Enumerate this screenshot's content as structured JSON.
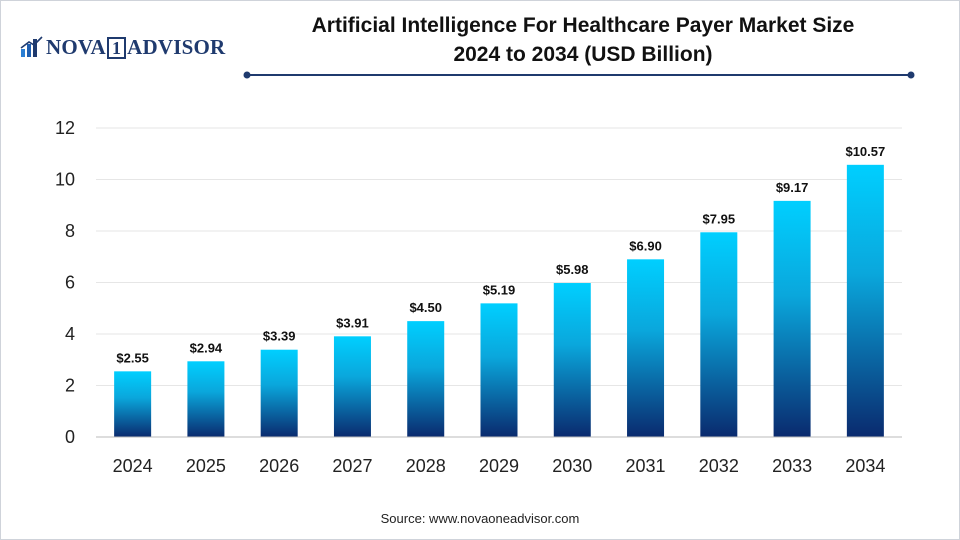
{
  "logo": {
    "text": "NOVA 1 ADVISOR",
    "name_left": "NOVA",
    "name_box": "1",
    "name_right": "ADVISOR",
    "icon": "bar-chart-icon"
  },
  "title": {
    "line1": "Artificial Intelligence For Healthcare Payer Market Size",
    "line2": "2024 to 2034 (USD Billion)"
  },
  "source": "Source: www.novaoneadvisor.com",
  "colors": {
    "bar_top": "#00cfff",
    "bar_bottom": "#0a2a6e",
    "rule": "#1f3a6e",
    "grid": "#e6e6e6",
    "axis": "#bbbbbb"
  },
  "chart_data": {
    "type": "bar",
    "title": "Artificial Intelligence For Healthcare Payer Market Size 2024 to 2034 (USD Billion)",
    "xlabel": "",
    "ylabel": "",
    "categories": [
      "2024",
      "2025",
      "2026",
      "2027",
      "2028",
      "2029",
      "2030",
      "2031",
      "2032",
      "2033",
      "2034"
    ],
    "values": [
      2.55,
      2.94,
      3.39,
      3.91,
      4.5,
      5.19,
      5.98,
      6.9,
      7.95,
      9.17,
      10.57
    ],
    "data_labels": [
      "$2.55",
      "$2.94",
      "$3.39",
      "$3.91",
      "$4.50",
      "$5.19",
      "$5.98",
      "$6.90",
      "$7.95",
      "$9.17",
      "$10.57"
    ],
    "ylim": [
      0,
      12
    ],
    "yticks": [
      "0",
      "2",
      "4",
      "6",
      "8",
      "10",
      "12"
    ],
    "grid": true,
    "legend": "none"
  }
}
